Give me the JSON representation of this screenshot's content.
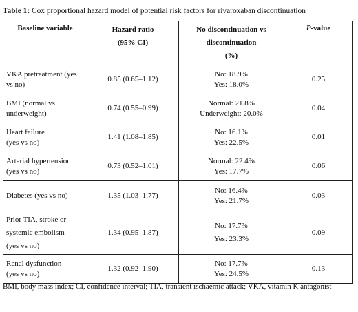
{
  "caption": {
    "label": "Table 1:",
    "text": " Cox proportional hazard model of potential risk factors for rivaroxaban discontinuation"
  },
  "headers": {
    "variable": "Baseline variable",
    "hr_line1": "Hazard ratio",
    "hr_line2": "(95% CI)",
    "nd_line1": "No discontinuation vs",
    "nd_line2": "discontinuation",
    "nd_line3": "(%)",
    "p_italic": "P",
    "p_rest": "-value"
  },
  "rows": [
    {
      "var1": "VKA pretreatment (yes",
      "var2": "vs no)",
      "var3": "",
      "hr": "0.85 (0.65–1.12)",
      "nd1": "No: 18.9%",
      "nd2": "Yes: 18.0%",
      "p": "0.25"
    },
    {
      "var1": "BMI (normal vs",
      "var2": "underweight)",
      "var3": "",
      "hr": "0.74 (0.55–0.99)",
      "nd1": "Normal: 21.8%",
      "nd2": "Underweight: 20.0%",
      "p": "0.04"
    },
    {
      "var1": "Heart failure",
      "var2": "(yes vs no)",
      "var3": "",
      "hr": "1.41 (1.08–1.85)",
      "nd1": "No: 16.1%",
      "nd2": "Yes: 22.5%",
      "p": "0.01"
    },
    {
      "var1": "Arterial hypertension",
      "var2": "(yes vs no)",
      "var3": "",
      "hr": "0.73 (0.52–1.01)",
      "nd1": "Normal: 22.4%",
      "nd2": "Yes: 17.7%",
      "p": "0.06"
    },
    {
      "var1": "Diabetes (yes vs no)",
      "var2": "",
      "var3": "",
      "hr": "1.35 (1.03–1.77)",
      "nd1": "No: 16.4%",
      "nd2": "Yes: 21.7%",
      "p": "0.03"
    },
    {
      "var1": "Prior TIA, stroke or",
      "var2": "systemic embolism",
      "var3": "(yes vs no)",
      "hr": "1.34 (0.95–1.87)",
      "nd1": "No: 17.7%",
      "nd2": "Yes: 23.3%",
      "p": "0.09"
    },
    {
      "var1": "Renal dysfunction",
      "var2": "(yes vs no)",
      "var3": "",
      "hr": "1.32 (0.92–1.90)",
      "nd1": "No: 17.7%",
      "nd2": "Yes: 24.5%",
      "p": "0.13"
    }
  ],
  "footnote": "BMI, body mass index; CI, confidence interval; TIA, transient ischaemic attack; VKA, vitamin K antagonist"
}
